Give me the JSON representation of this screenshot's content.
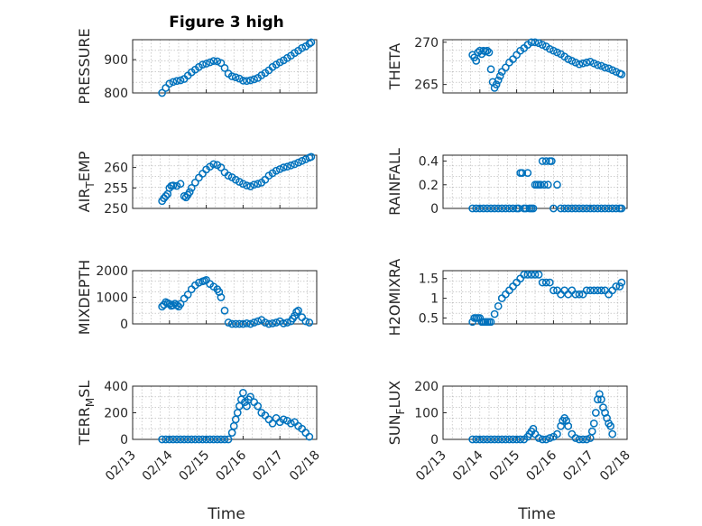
{
  "figure": {
    "title": "Figure 3 high",
    "xlabel": "Time",
    "color_marker": "#0072BD",
    "color_axes": "#262626"
  },
  "chart_data": [
    {
      "type": "scatter",
      "ylabel": "PRESSURE",
      "ylabel_sub": "",
      "ylabel_after": "",
      "xlim": [
        0,
        5
      ],
      "ylim": [
        800,
        960
      ],
      "yticks": [
        800,
        900
      ],
      "yticklabels": [
        "800",
        "900"
      ],
      "xticklabels": [
        "02/13",
        "02/14",
        "02/15",
        "02/16",
        "02/17",
        "02/18"
      ],
      "show_xticklabels": false,
      "x": [
        0.8,
        0.9,
        1.0,
        1.1,
        1.2,
        1.3,
        1.4,
        1.5,
        1.6,
        1.7,
        1.8,
        1.9,
        2.0,
        2.1,
        2.2,
        2.3,
        2.4,
        2.5,
        2.6,
        2.7,
        2.8,
        2.9,
        3.0,
        3.1,
        3.2,
        3.3,
        3.4,
        3.5,
        3.6,
        3.7,
        3.8,
        3.9,
        4.0,
        4.1,
        4.2,
        4.3,
        4.4,
        4.5,
        4.6,
        4.7,
        4.8,
        4.85
      ],
      "y": [
        800,
        815,
        828,
        833,
        836,
        838,
        842,
        852,
        862,
        870,
        878,
        885,
        888,
        892,
        896,
        895,
        890,
        875,
        858,
        850,
        847,
        843,
        837,
        836,
        838,
        841,
        845,
        853,
        860,
        868,
        878,
        885,
        892,
        898,
        905,
        912,
        920,
        927,
        935,
        940,
        948,
        952
      ]
    },
    {
      "type": "scatter",
      "ylabel": "THETA",
      "ylabel_sub": "",
      "ylabel_after": "",
      "xlim": [
        0,
        5
      ],
      "ylim": [
        264,
        270.3
      ],
      "yticks": [
        265,
        270
      ],
      "yticklabels": [
        "265",
        "270"
      ],
      "xticklabels": [
        "02/13",
        "02/14",
        "02/15",
        "02/16",
        "02/17",
        "02/18"
      ],
      "show_xticklabels": false,
      "x": [
        0.8,
        0.85,
        0.9,
        0.95,
        1.0,
        1.05,
        1.1,
        1.15,
        1.2,
        1.25,
        1.3,
        1.35,
        1.4,
        1.45,
        1.5,
        1.55,
        1.6,
        1.7,
        1.8,
        1.9,
        2.0,
        2.1,
        2.2,
        2.3,
        2.4,
        2.5,
        2.6,
        2.7,
        2.8,
        2.9,
        3.0,
        3.1,
        3.2,
        3.3,
        3.4,
        3.5,
        3.6,
        3.7,
        3.8,
        3.9,
        4.0,
        4.1,
        4.2,
        4.3,
        4.4,
        4.5,
        4.6,
        4.7,
        4.8,
        4.85
      ],
      "y": [
        268.5,
        268.2,
        267.8,
        268.8,
        269.0,
        268.6,
        269.0,
        268.9,
        269.0,
        268.8,
        266.8,
        265.3,
        264.6,
        265.0,
        265.5,
        266.0,
        266.5,
        267.0,
        267.6,
        268.0,
        268.5,
        269.0,
        269.3,
        269.7,
        270.0,
        270.0,
        269.9,
        269.7,
        269.5,
        269.2,
        269.0,
        268.8,
        268.6,
        268.3,
        268.0,
        267.8,
        267.6,
        267.4,
        267.5,
        267.6,
        267.7,
        267.5,
        267.3,
        267.2,
        267.0,
        266.9,
        266.7,
        266.5,
        266.3,
        266.2
      ]
    },
    {
      "type": "scatter",
      "ylabel": "AIR",
      "ylabel_sub": "T",
      "ylabel_after": "EMP",
      "xlim": [
        0,
        5
      ],
      "ylim": [
        250,
        263
      ],
      "yticks": [
        250,
        255,
        260
      ],
      "yticklabels": [
        "250",
        "255",
        "260"
      ],
      "xticklabels": [
        "02/13",
        "02/14",
        "02/15",
        "02/16",
        "02/17",
        "02/18"
      ],
      "show_xticklabels": false,
      "x": [
        0.8,
        0.85,
        0.9,
        0.95,
        1.0,
        1.05,
        1.1,
        1.2,
        1.3,
        1.4,
        1.45,
        1.5,
        1.55,
        1.6,
        1.7,
        1.8,
        1.9,
        2.0,
        2.1,
        2.2,
        2.3,
        2.4,
        2.5,
        2.6,
        2.7,
        2.8,
        2.9,
        3.0,
        3.1,
        3.2,
        3.3,
        3.4,
        3.5,
        3.6,
        3.7,
        3.8,
        3.9,
        4.0,
        4.1,
        4.2,
        4.3,
        4.4,
        4.5,
        4.6,
        4.7,
        4.8,
        4.85
      ],
      "y": [
        251.8,
        252.5,
        253.0,
        253.5,
        255.0,
        255.5,
        255.6,
        255.5,
        256.0,
        253.0,
        252.7,
        253.3,
        254.0,
        255.0,
        256.3,
        257.5,
        258.5,
        259.5,
        260.2,
        260.8,
        260.6,
        260.0,
        258.8,
        258.0,
        257.6,
        257.0,
        256.5,
        256.0,
        255.6,
        255.4,
        255.8,
        256.0,
        256.3,
        257.0,
        258.0,
        258.6,
        259.2,
        259.6,
        260.0,
        260.2,
        260.5,
        260.8,
        261.2,
        261.6,
        262.0,
        262.4,
        262.6
      ]
    },
    {
      "type": "scatter",
      "ylabel": "RAINFALL",
      "ylabel_sub": "",
      "ylabel_after": "",
      "xlim": [
        0,
        5
      ],
      "ylim": [
        0,
        0.45
      ],
      "yticks": [
        0,
        0.2,
        0.4
      ],
      "yticklabels": [
        "0",
        "0.2",
        "0.4"
      ],
      "xticklabels": [
        "02/13",
        "02/14",
        "02/15",
        "02/16",
        "02/17",
        "02/18"
      ],
      "show_xticklabels": false,
      "x": [
        0.8,
        0.9,
        1.0,
        1.1,
        1.2,
        1.3,
        1.4,
        1.5,
        1.6,
        1.7,
        1.8,
        1.9,
        2.0,
        2.05,
        2.1,
        2.15,
        2.2,
        2.25,
        2.3,
        2.35,
        2.4,
        2.45,
        2.5,
        2.55,
        2.6,
        2.65,
        2.7,
        2.75,
        2.8,
        2.85,
        2.9,
        2.95,
        3.0,
        3.1,
        3.2,
        3.3,
        3.4,
        3.5,
        3.6,
        3.7,
        3.8,
        3.9,
        4.0,
        4.1,
        4.2,
        4.3,
        4.4,
        4.5,
        4.6,
        4.7,
        4.8,
        4.85
      ],
      "y": [
        0,
        0,
        0,
        0,
        0,
        0,
        0,
        0,
        0,
        0,
        0,
        0,
        0,
        0,
        0.3,
        0.3,
        0,
        0,
        0.3,
        0,
        0,
        0,
        0.2,
        0.2,
        0.2,
        0.2,
        0.4,
        0.2,
        0.4,
        0.2,
        0.4,
        0.4,
        0,
        0.2,
        0,
        0,
        0,
        0,
        0,
        0,
        0,
        0,
        0,
        0,
        0,
        0,
        0,
        0,
        0,
        0,
        0,
        0
      ]
    },
    {
      "type": "scatter",
      "ylabel": "MIXDEPTH",
      "ylabel_sub": "",
      "ylabel_after": "",
      "xlim": [
        0,
        5
      ],
      "ylim": [
        0,
        2000
      ],
      "yticks": [
        0,
        1000,
        2000
      ],
      "yticklabels": [
        "0",
        "1000",
        "2000"
      ],
      "xticklabels": [
        "02/13",
        "02/14",
        "02/15",
        "02/16",
        "02/17",
        "02/18"
      ],
      "show_xticklabels": false,
      "x": [
        0.8,
        0.85,
        0.9,
        0.95,
        1.0,
        1.05,
        1.1,
        1.15,
        1.2,
        1.25,
        1.3,
        1.4,
        1.5,
        1.6,
        1.7,
        1.8,
        1.9,
        1.95,
        2.0,
        2.1,
        2.2,
        2.3,
        2.35,
        2.4,
        2.5,
        2.6,
        2.7,
        2.8,
        2.9,
        3.0,
        3.1,
        3.2,
        3.3,
        3.4,
        3.5,
        3.6,
        3.7,
        3.8,
        3.9,
        4.0,
        4.1,
        4.2,
        4.3,
        4.35,
        4.4,
        4.45,
        4.5,
        4.6,
        4.7,
        4.8
      ],
      "y": [
        650,
        720,
        820,
        780,
        750,
        680,
        700,
        760,
        700,
        650,
        750,
        950,
        1100,
        1300,
        1450,
        1550,
        1600,
        1620,
        1650,
        1500,
        1400,
        1300,
        1200,
        1000,
        500,
        50,
        0,
        0,
        0,
        0,
        20,
        0,
        50,
        100,
        150,
        50,
        0,
        20,
        50,
        100,
        20,
        50,
        100,
        200,
        300,
        450,
        500,
        250,
        100,
        50
      ]
    },
    {
      "type": "scatter",
      "ylabel": "H2OMIXRA",
      "ylabel_sub": "",
      "ylabel_after": "",
      "xlim": [
        0,
        5
      ],
      "ylim": [
        0.35,
        1.7
      ],
      "yticks": [
        0.5,
        1,
        1.5
      ],
      "yticklabels": [
        "0.5",
        "1",
        "1.5"
      ],
      "xticklabels": [
        "02/13",
        "02/14",
        "02/15",
        "02/16",
        "02/17",
        "02/18"
      ],
      "show_xticklabels": false,
      "x": [
        0.8,
        0.85,
        0.9,
        0.95,
        1.0,
        1.05,
        1.1,
        1.15,
        1.2,
        1.25,
        1.3,
        1.4,
        1.5,
        1.6,
        1.7,
        1.8,
        1.9,
        2.0,
        2.1,
        2.2,
        2.3,
        2.4,
        2.5,
        2.6,
        2.7,
        2.8,
        2.9,
        3.0,
        3.1,
        3.2,
        3.3,
        3.4,
        3.5,
        3.6,
        3.7,
        3.8,
        3.9,
        4.0,
        4.1,
        4.2,
        4.3,
        4.4,
        4.5,
        4.6,
        4.7,
        4.8,
        4.85
      ],
      "y": [
        0.4,
        0.5,
        0.5,
        0.5,
        0.5,
        0.4,
        0.4,
        0.4,
        0.4,
        0.4,
        0.4,
        0.6,
        0.8,
        1.0,
        1.1,
        1.2,
        1.3,
        1.4,
        1.5,
        1.6,
        1.6,
        1.6,
        1.6,
        1.6,
        1.4,
        1.4,
        1.4,
        1.2,
        1.2,
        1.1,
        1.2,
        1.1,
        1.2,
        1.1,
        1.1,
        1.1,
        1.2,
        1.2,
        1.2,
        1.2,
        1.2,
        1.2,
        1.1,
        1.2,
        1.3,
        1.3,
        1.4
      ]
    },
    {
      "type": "scatter",
      "ylabel": "TERR",
      "ylabel_sub": "M",
      "ylabel_after": "SL",
      "xlim": [
        0,
        5
      ],
      "ylim": [
        0,
        400
      ],
      "yticks": [
        0,
        200,
        400
      ],
      "yticklabels": [
        "0",
        "200",
        "400"
      ],
      "xticklabels": [
        "02/13",
        "02/14",
        "02/15",
        "02/16",
        "02/17",
        "02/18"
      ],
      "show_xticklabels": true,
      "x": [
        0.8,
        0.9,
        1.0,
        1.1,
        1.2,
        1.3,
        1.4,
        1.5,
        1.6,
        1.7,
        1.8,
        1.9,
        2.0,
        2.1,
        2.2,
        2.3,
        2.4,
        2.5,
        2.6,
        2.7,
        2.75,
        2.8,
        2.85,
        2.9,
        2.95,
        3.0,
        3.05,
        3.1,
        3.15,
        3.2,
        3.3,
        3.4,
        3.5,
        3.6,
        3.7,
        3.8,
        3.9,
        4.0,
        4.1,
        4.2,
        4.3,
        4.4,
        4.5,
        4.6,
        4.7,
        4.8
      ],
      "y": [
        0,
        0,
        0,
        0,
        0,
        0,
        0,
        0,
        0,
        0,
        0,
        0,
        0,
        0,
        0,
        0,
        0,
        0,
        0,
        50,
        100,
        150,
        200,
        250,
        300,
        350,
        280,
        250,
        300,
        320,
        280,
        250,
        200,
        180,
        150,
        120,
        160,
        130,
        150,
        140,
        120,
        130,
        100,
        80,
        50,
        20
      ]
    },
    {
      "type": "scatter",
      "ylabel": "SUN",
      "ylabel_sub": "F",
      "ylabel_after": "LUX",
      "xlim": [
        0,
        5
      ],
      "ylim": [
        0,
        200
      ],
      "yticks": [
        0,
        100,
        200
      ],
      "yticklabels": [
        "0",
        "100",
        "200"
      ],
      "xticklabels": [
        "02/13",
        "02/14",
        "02/15",
        "02/16",
        "02/17",
        "02/18"
      ],
      "show_xticklabels": true,
      "x": [
        0.8,
        0.9,
        1.0,
        1.1,
        1.2,
        1.3,
        1.4,
        1.5,
        1.6,
        1.7,
        1.8,
        1.9,
        2.0,
        2.1,
        2.2,
        2.3,
        2.35,
        2.4,
        2.45,
        2.5,
        2.6,
        2.7,
        2.8,
        2.9,
        3.0,
        3.1,
        3.2,
        3.25,
        3.3,
        3.35,
        3.4,
        3.5,
        3.6,
        3.7,
        3.8,
        3.9,
        4.0,
        4.05,
        4.1,
        4.15,
        4.2,
        4.25,
        4.3,
        4.35,
        4.4,
        4.45,
        4.5,
        4.55,
        4.6
      ],
      "y": [
        0,
        0,
        0,
        0,
        0,
        0,
        0,
        0,
        0,
        0,
        0,
        0,
        0,
        0,
        0,
        10,
        20,
        30,
        40,
        20,
        5,
        0,
        0,
        5,
        10,
        20,
        50,
        70,
        80,
        70,
        50,
        20,
        5,
        0,
        0,
        0,
        5,
        30,
        60,
        100,
        150,
        170,
        150,
        120,
        100,
        80,
        60,
        50,
        20
      ]
    }
  ]
}
